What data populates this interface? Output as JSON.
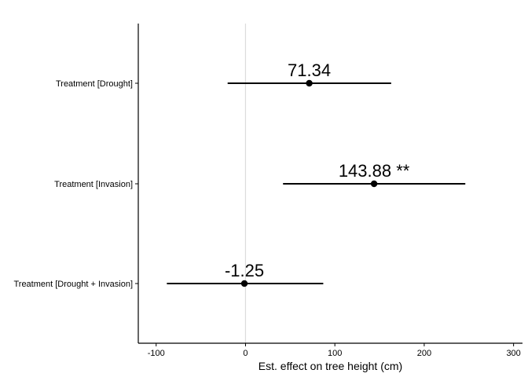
{
  "chart_data": {
    "type": "forest",
    "title": "",
    "xlabel": "Est. effect on tree height (cm)",
    "ylabel": "",
    "xlim": [
      -120,
      310
    ],
    "x_ticks": [
      -100,
      0,
      100,
      200,
      300
    ],
    "x_tick_labels": [
      "-100",
      "0",
      "100",
      "200",
      "300"
    ],
    "reference_line": 0,
    "grid": false,
    "legend": "none",
    "colors": {
      "points": "#000000",
      "reference_line": "#dcdcdc",
      "axis": "#000000"
    },
    "categories": [
      "Treatment [Drought]",
      "Treatment [Invasion]",
      "Treatment [Drought + Invasion]"
    ],
    "estimates": [
      71.34,
      143.88,
      -1.25
    ],
    "ci_low": [
      -20,
      42,
      -88
    ],
    "ci_high": [
      163,
      246,
      87
    ],
    "labels": [
      "71.34",
      "143.88 **",
      "-1.25"
    ]
  }
}
